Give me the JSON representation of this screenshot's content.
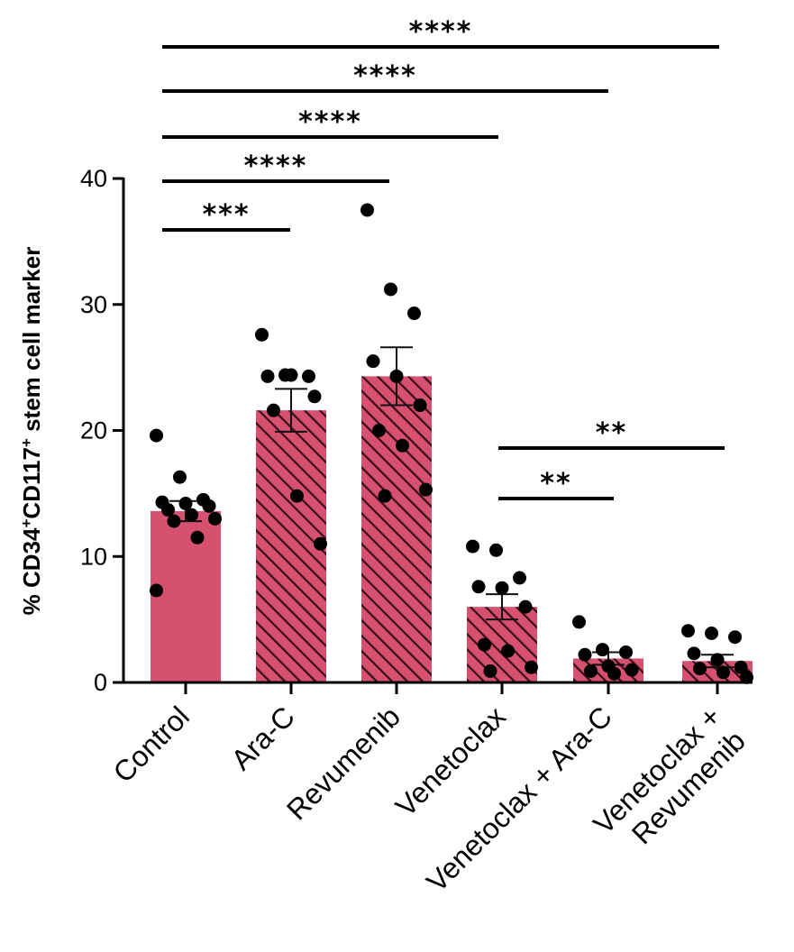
{
  "chart_data": {
    "type": "bar",
    "ylabel": "% CD34+CD117+ stem cell marker",
    "ylabel_parts": {
      "pre": "% CD34",
      "sup1": "+",
      "mid": "CD117",
      "sup2": "+",
      "post": " stem cell marker"
    },
    "ylim": [
      0,
      40
    ],
    "yticks": [
      0,
      10,
      20,
      30,
      40
    ],
    "bar_color": "#d6506f",
    "hatch_color": "#3a0d1c",
    "categories": [
      {
        "label_lines": [
          "Control"
        ],
        "hatched": false,
        "mean": 13.6,
        "sem": 0.8,
        "points": [
          19.6,
          16.3,
          14.5,
          14.3,
          14.2,
          14.0,
          13.7,
          13.3,
          13.0,
          12.8,
          11.5,
          7.3
        ]
      },
      {
        "label_lines": [
          "Ara-C"
        ],
        "hatched": true,
        "mean": 21.6,
        "sem": 1.7,
        "points": [
          27.6,
          24.4,
          24.3,
          24.3,
          24.4,
          22.7,
          21.6,
          14.8,
          11.0
        ]
      },
      {
        "label_lines": [
          "Revumenib"
        ],
        "hatched": true,
        "mean": 24.3,
        "sem": 2.3,
        "points": [
          37.5,
          31.2,
          29.3,
          25.5,
          24.3,
          22.0,
          20.0,
          18.8,
          15.3,
          14.8
        ]
      },
      {
        "label_lines": [
          "Venetoclax"
        ],
        "hatched": true,
        "mean": 6.0,
        "sem": 1.0,
        "points": [
          10.8,
          10.5,
          8.3,
          7.6,
          7.5,
          6.0,
          3.0,
          2.5,
          1.2,
          0.9
        ]
      },
      {
        "label_lines": [
          "Venetoclax + Ara-C"
        ],
        "hatched": true,
        "mean": 1.9,
        "sem": 0.5,
        "points": [
          4.8,
          2.6,
          2.4,
          2.2,
          1.3,
          1.0,
          0.9,
          0.7
        ]
      },
      {
        "label_lines": [
          "Venetoclax +",
          "Revumenib"
        ],
        "hatched": true,
        "mean": 1.7,
        "sem": 0.5,
        "points": [
          4.1,
          3.9,
          3.6,
          2.3,
          1.8,
          1.2,
          1.1,
          0.8,
          0.4
        ]
      }
    ],
    "significance": [
      {
        "from": 0,
        "to": 5,
        "label": "****"
      },
      {
        "from": 0,
        "to": 4,
        "label": "****"
      },
      {
        "from": 0,
        "to": 3,
        "label": "****"
      },
      {
        "from": 0,
        "to": 2,
        "label": "****"
      },
      {
        "from": 0,
        "to": 1,
        "label": "***"
      },
      {
        "from": 3,
        "to": 5,
        "label": "**"
      },
      {
        "from": 3,
        "to": 4,
        "label": "**"
      }
    ]
  }
}
